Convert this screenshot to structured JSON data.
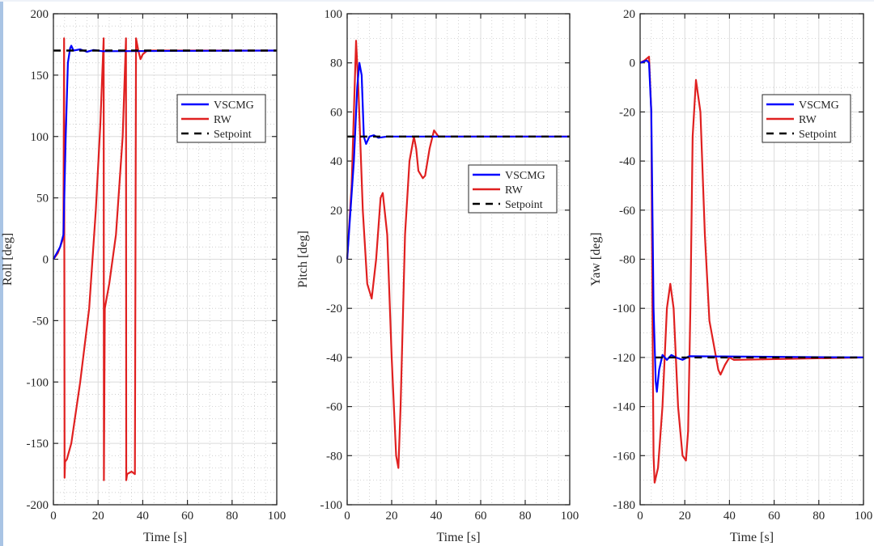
{
  "chart_data": [
    {
      "type": "line",
      "xlabel": "Time [s]",
      "ylabel": "Roll [deg]",
      "xlim": [
        0,
        100
      ],
      "ylim": [
        -200,
        200
      ],
      "xticks": [
        0,
        20,
        40,
        60,
        80,
        100
      ],
      "yticks": [
        -200,
        -150,
        -100,
        -50,
        0,
        50,
        100,
        150,
        200
      ],
      "grid": true,
      "legend_position": "upper-right",
      "series": [
        {
          "name": "VSCMG",
          "color": "#0000ff",
          "style": "solid",
          "x": [
            0,
            3,
            4.5,
            5.5,
            6.5,
            7.5,
            8,
            9,
            12,
            15,
            18,
            22,
            100
          ],
          "y": [
            0,
            10,
            20,
            100,
            160,
            172,
            174,
            170,
            171,
            169,
            170.5,
            169.5,
            170
          ]
        },
        {
          "name": "RW",
          "color": "#e02020",
          "style": "solid",
          "x": [
            0,
            2,
            4,
            4.5,
            4.8,
            5,
            5.2,
            6,
            8,
            12,
            16,
            19,
            21,
            22.5,
            22.6,
            23,
            25,
            28,
            31,
            32.5,
            32.6,
            33,
            35,
            36.5,
            37,
            38,
            39,
            40,
            42,
            100
          ],
          "y": [
            0,
            5,
            15,
            20,
            180,
            -178,
            -165,
            -163,
            -150,
            -100,
            -40,
            40,
            110,
            180,
            -180,
            -40,
            -20,
            20,
            100,
            180,
            -180,
            -175,
            -173,
            -175,
            180,
            170,
            163,
            167,
            170,
            170
          ]
        },
        {
          "name": "Setpoint",
          "color": "#000000",
          "style": "dashed",
          "x": [
            0,
            100
          ],
          "y": [
            170,
            170
          ]
        }
      ]
    },
    {
      "type": "line",
      "xlabel": "Time [s]",
      "ylabel": "Pitch [deg]",
      "xlim": [
        0,
        100
      ],
      "ylim": [
        -100,
        100
      ],
      "xticks": [
        0,
        20,
        40,
        60,
        80,
        100
      ],
      "yticks": [
        -100,
        -80,
        -60,
        -40,
        -20,
        0,
        20,
        40,
        60,
        80,
        100
      ],
      "grid": true,
      "legend_position": "center-right",
      "series": [
        {
          "name": "VSCMG",
          "color": "#0000ff",
          "style": "solid",
          "x": [
            0,
            3,
            4.5,
            5.5,
            6.5,
            7.5,
            8.5,
            10,
            12,
            14,
            18,
            100
          ],
          "y": [
            0,
            40,
            70,
            80,
            75,
            50,
            47,
            50,
            50.5,
            49.5,
            50,
            50
          ]
        },
        {
          "name": "RW",
          "color": "#e02020",
          "style": "solid",
          "x": [
            0,
            2,
            4,
            5,
            7,
            9,
            11,
            13,
            15,
            16,
            18,
            20,
            22,
            23,
            24,
            26,
            28,
            30,
            31,
            32,
            34,
            35,
            37,
            39,
            41,
            100
          ],
          "y": [
            0,
            30,
            89,
            70,
            20,
            -10,
            -16,
            0,
            25,
            27,
            10,
            -40,
            -80,
            -85,
            -60,
            10,
            40,
            50,
            45,
            36,
            33,
            34,
            45,
            52.5,
            50,
            50
          ]
        },
        {
          "name": "Setpoint",
          "color": "#000000",
          "style": "dashed",
          "x": [
            0,
            100
          ],
          "y": [
            50,
            50
          ]
        }
      ]
    },
    {
      "type": "line",
      "xlabel": "Time [s]",
      "ylabel": "Yaw [deg]",
      "xlim": [
        0,
        100
      ],
      "ylim": [
        -180,
        20
      ],
      "xticks": [
        0,
        20,
        40,
        60,
        80,
        100
      ],
      "yticks": [
        -180,
        -160,
        -140,
        -120,
        -100,
        -80,
        -60,
        -40,
        -20,
        0,
        20
      ],
      "grid": true,
      "legend_position": "upper-right",
      "series": [
        {
          "name": "VSCMG",
          "color": "#0000ff",
          "style": "solid",
          "x": [
            0,
            3,
            4,
            5,
            6,
            7,
            7.5,
            8.5,
            10,
            12,
            14,
            16,
            19,
            22,
            100
          ],
          "y": [
            0,
            1,
            0,
            -20,
            -100,
            -130,
            -134,
            -125,
            -119,
            -121,
            -119,
            -120,
            -121,
            -119.5,
            -120
          ]
        },
        {
          "name": "RW",
          "color": "#e02020",
          "style": "solid",
          "x": [
            0,
            2,
            4,
            5,
            5.5,
            6,
            6.5,
            8,
            10,
            12,
            13.5,
            15,
            17,
            19,
            20.5,
            21.5,
            22.5,
            23.5,
            25,
            27,
            29,
            31,
            33,
            35,
            36,
            38,
            40,
            42,
            100
          ],
          "y": [
            0,
            1,
            2.5,
            -20,
            -100,
            -160,
            -171,
            -165,
            -140,
            -100,
            -90,
            -100,
            -140,
            -160,
            -162,
            -150,
            -100,
            -30,
            -7,
            -20,
            -70,
            -105,
            -115,
            -125,
            -127,
            -123,
            -120,
            -121,
            -120
          ]
        },
        {
          "name": "Setpoint",
          "color": "#000000",
          "style": "dashed",
          "x": [
            7,
            100
          ],
          "y": [
            -120,
            -120
          ]
        }
      ]
    }
  ]
}
